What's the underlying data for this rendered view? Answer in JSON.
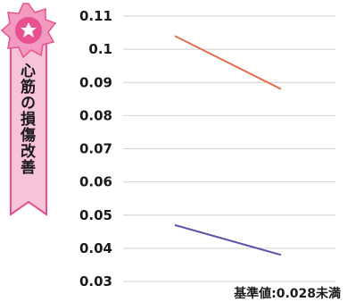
{
  "side_title": "心筋の損傷改善",
  "footnote": "基準値:0.028未満",
  "colors": {
    "series_upper": "#e0704a",
    "series_lower": "#5a52a8",
    "ribbon": "#e8508f",
    "ribbon_light": "#f7c3d9",
    "grid": "#cfcfcf"
  },
  "chart_data": {
    "type": "line",
    "x": [
      "",
      ""
    ],
    "series": [
      {
        "values": [
          0.104,
          0.088
        ],
        "color": "#e0704a"
      },
      {
        "values": [
          0.047,
          0.038
        ],
        "color": "#5a52a8"
      }
    ],
    "ylim": [
      0.03,
      0.11
    ],
    "yticks": [
      "0.03",
      "0.04",
      "0.05",
      "0.06",
      "0.07",
      "0.08",
      "0.09",
      "0.1",
      "0.11"
    ],
    "grid": true,
    "legend": "none"
  }
}
